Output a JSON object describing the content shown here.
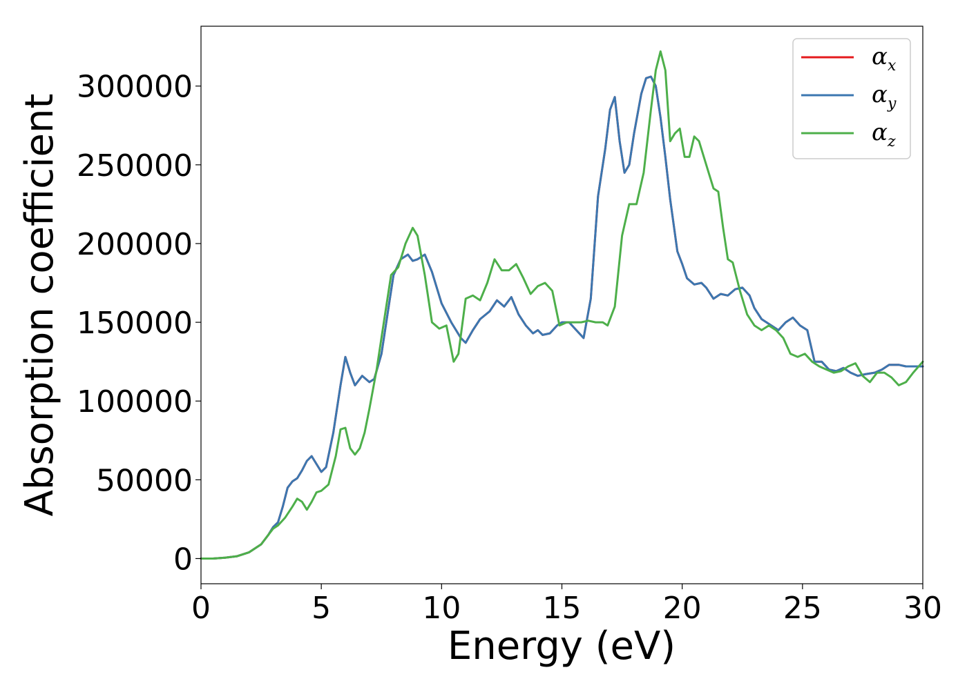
{
  "chart_data": {
    "type": "line",
    "xlabel": "Energy (eV)",
    "ylabel": "Absorption coefficient",
    "xlim": [
      0,
      30
    ],
    "ylim": [
      -16000,
      338000
    ],
    "xticks": [
      0,
      5,
      10,
      15,
      20,
      25,
      30
    ],
    "yticks": [
      0,
      50000,
      100000,
      150000,
      200000,
      250000,
      300000
    ],
    "grid": false,
    "legend_position": "top-right",
    "series": [
      {
        "name": "α_x",
        "legend_main": "α",
        "legend_sub": "x",
        "color": "#e41a1c",
        "x": [
          0,
          0.5,
          1,
          1.5,
          2,
          2.5,
          2.8,
          3.0,
          3.2,
          3.4,
          3.6,
          3.8,
          4.0,
          4.2,
          4.4,
          4.6,
          4.8,
          5.0,
          5.2,
          5.5,
          5.8,
          6.0,
          6.2,
          6.4,
          6.7,
          7.0,
          7.2,
          7.5,
          7.8,
          8.0,
          8.3,
          8.6,
          8.8,
          9.0,
          9.3,
          9.6,
          10.0,
          10.4,
          10.8,
          11.0,
          11.3,
          11.6,
          12.0,
          12.3,
          12.6,
          12.9,
          13.2,
          13.5,
          13.8,
          14.0,
          14.2,
          14.5,
          14.8,
          15.0,
          15.3,
          15.6,
          15.9,
          16.2,
          16.5,
          16.8,
          17.0,
          17.2,
          17.4,
          17.6,
          17.8,
          18.0,
          18.3,
          18.5,
          18.7,
          18.9,
          19.1,
          19.3,
          19.5,
          19.8,
          20.0,
          20.2,
          20.5,
          20.8,
          21.0,
          21.3,
          21.6,
          21.9,
          22.2,
          22.5,
          22.8,
          23.0,
          23.3,
          23.6,
          24.0,
          24.3,
          24.6,
          24.9,
          25.2,
          25.5,
          25.8,
          26.1,
          26.4,
          26.7,
          27.0,
          27.3,
          27.6,
          28.0,
          28.3,
          28.6,
          29.0,
          29.3,
          29.6,
          30.0
        ],
        "y": [
          0,
          0,
          500,
          1500,
          4000,
          9000,
          15000,
          20000,
          23000,
          33000,
          45000,
          49000,
          51000,
          56000,
          62000,
          65000,
          60000,
          55000,
          58000,
          80000,
          110000,
          128000,
          118000,
          110000,
          116000,
          112000,
          114000,
          130000,
          160000,
          180000,
          190000,
          193000,
          189000,
          190000,
          193000,
          182000,
          162000,
          150000,
          140000,
          137000,
          145000,
          152000,
          157000,
          164000,
          160000,
          166000,
          155000,
          148000,
          143000,
          145000,
          142000,
          143000,
          148000,
          150000,
          150000,
          145000,
          140000,
          165000,
          230000,
          260000,
          285000,
          293000,
          265000,
          245000,
          250000,
          270000,
          295000,
          305000,
          306000,
          300000,
          280000,
          255000,
          228000,
          195000,
          187000,
          178000,
          174000,
          175000,
          172000,
          165000,
          168000,
          167000,
          171000,
          172000,
          167000,
          159000,
          152000,
          149000,
          145000,
          150000,
          153000,
          148000,
          145000,
          125000,
          125000,
          120000,
          119000,
          121000,
          118000,
          116000,
          117000,
          118000,
          120000,
          123000,
          123000,
          122000,
          122000,
          122000
        ],
        "linewidth": 3
      },
      {
        "name": "α_y",
        "legend_main": "α",
        "legend_sub": "y",
        "color": "#3b77b0",
        "x": [
          0,
          0.5,
          1,
          1.5,
          2,
          2.5,
          2.8,
          3.0,
          3.2,
          3.4,
          3.6,
          3.8,
          4.0,
          4.2,
          4.4,
          4.6,
          4.8,
          5.0,
          5.2,
          5.5,
          5.8,
          6.0,
          6.2,
          6.4,
          6.7,
          7.0,
          7.2,
          7.5,
          7.8,
          8.0,
          8.3,
          8.6,
          8.8,
          9.0,
          9.3,
          9.6,
          10.0,
          10.4,
          10.8,
          11.0,
          11.3,
          11.6,
          12.0,
          12.3,
          12.6,
          12.9,
          13.2,
          13.5,
          13.8,
          14.0,
          14.2,
          14.5,
          14.8,
          15.0,
          15.3,
          15.6,
          15.9,
          16.2,
          16.5,
          16.8,
          17.0,
          17.2,
          17.4,
          17.6,
          17.8,
          18.0,
          18.3,
          18.5,
          18.7,
          18.9,
          19.1,
          19.3,
          19.5,
          19.8,
          20.0,
          20.2,
          20.5,
          20.8,
          21.0,
          21.3,
          21.6,
          21.9,
          22.2,
          22.5,
          22.8,
          23.0,
          23.3,
          23.6,
          24.0,
          24.3,
          24.6,
          24.9,
          25.2,
          25.5,
          25.8,
          26.1,
          26.4,
          26.7,
          27.0,
          27.3,
          27.6,
          28.0,
          28.3,
          28.6,
          29.0,
          29.3,
          29.6,
          30.0
        ],
        "y": [
          0,
          0,
          500,
          1500,
          4000,
          9000,
          15000,
          20000,
          23000,
          33000,
          45000,
          49000,
          51000,
          56000,
          62000,
          65000,
          60000,
          55000,
          58000,
          80000,
          110000,
          128000,
          118000,
          110000,
          116000,
          112000,
          114000,
          130000,
          160000,
          180000,
          190000,
          193000,
          189000,
          190000,
          193000,
          182000,
          162000,
          150000,
          140000,
          137000,
          145000,
          152000,
          157000,
          164000,
          160000,
          166000,
          155000,
          148000,
          143000,
          145000,
          142000,
          143000,
          148000,
          150000,
          150000,
          145000,
          140000,
          165000,
          230000,
          260000,
          285000,
          293000,
          265000,
          245000,
          250000,
          270000,
          295000,
          305000,
          306000,
          300000,
          280000,
          255000,
          228000,
          195000,
          187000,
          178000,
          174000,
          175000,
          172000,
          165000,
          168000,
          167000,
          171000,
          172000,
          167000,
          159000,
          152000,
          149000,
          145000,
          150000,
          153000,
          148000,
          145000,
          125000,
          125000,
          120000,
          119000,
          121000,
          118000,
          116000,
          117000,
          118000,
          120000,
          123000,
          123000,
          122000,
          122000,
          122000
        ],
        "linewidth": 3
      },
      {
        "name": "α_z",
        "legend_main": "α",
        "legend_sub": "z",
        "color": "#4daf4a",
        "x": [
          0,
          0.5,
          1,
          1.5,
          2,
          2.5,
          2.8,
          3.0,
          3.2,
          3.5,
          3.8,
          4.0,
          4.2,
          4.4,
          4.6,
          4.8,
          5.0,
          5.3,
          5.6,
          5.8,
          6.0,
          6.2,
          6.4,
          6.6,
          6.8,
          7.0,
          7.3,
          7.6,
          7.9,
          8.2,
          8.5,
          8.8,
          9.0,
          9.3,
          9.6,
          9.9,
          10.2,
          10.5,
          10.7,
          11.0,
          11.3,
          11.6,
          11.9,
          12.2,
          12.5,
          12.8,
          13.1,
          13.4,
          13.7,
          14.0,
          14.3,
          14.6,
          14.9,
          15.2,
          15.5,
          15.8,
          16.1,
          16.4,
          16.7,
          16.9,
          17.2,
          17.5,
          17.8,
          18.1,
          18.4,
          18.7,
          18.9,
          19.1,
          19.3,
          19.5,
          19.7,
          19.9,
          20.1,
          20.3,
          20.5,
          20.7,
          20.9,
          21.1,
          21.3,
          21.5,
          21.7,
          21.9,
          22.1,
          22.4,
          22.7,
          23.0,
          23.3,
          23.6,
          23.9,
          24.2,
          24.5,
          24.8,
          25.1,
          25.4,
          25.7,
          26.0,
          26.3,
          26.6,
          26.9,
          27.2,
          27.5,
          27.8,
          28.1,
          28.4,
          28.7,
          29.0,
          29.3,
          29.6,
          30.0
        ],
        "y": [
          0,
          0,
          500,
          1500,
          4000,
          9000,
          15000,
          19000,
          21000,
          26000,
          33000,
          38000,
          36000,
          31000,
          36000,
          42000,
          43000,
          47000,
          65000,
          82000,
          83000,
          70000,
          66000,
          70000,
          80000,
          95000,
          120000,
          150000,
          180000,
          185000,
          200000,
          210000,
          205000,
          180000,
          150000,
          146000,
          148000,
          125000,
          130000,
          165000,
          167000,
          164000,
          175000,
          190000,
          183000,
          183000,
          187000,
          178000,
          168000,
          173000,
          175000,
          170000,
          148000,
          150000,
          150000,
          150000,
          151000,
          150000,
          150000,
          148000,
          160000,
          205000,
          225000,
          225000,
          245000,
          285000,
          310000,
          322000,
          310000,
          265000,
          270000,
          273000,
          255000,
          255000,
          268000,
          265000,
          255000,
          245000,
          235000,
          233000,
          210000,
          190000,
          188000,
          170000,
          155000,
          148000,
          145000,
          148000,
          145000,
          140000,
          130000,
          128000,
          130000,
          125000,
          122000,
          120000,
          118000,
          119000,
          122000,
          124000,
          116000,
          112000,
          118000,
          118000,
          115000,
          110000,
          112000,
          118000,
          125000
        ],
        "linewidth": 3
      }
    ]
  }
}
